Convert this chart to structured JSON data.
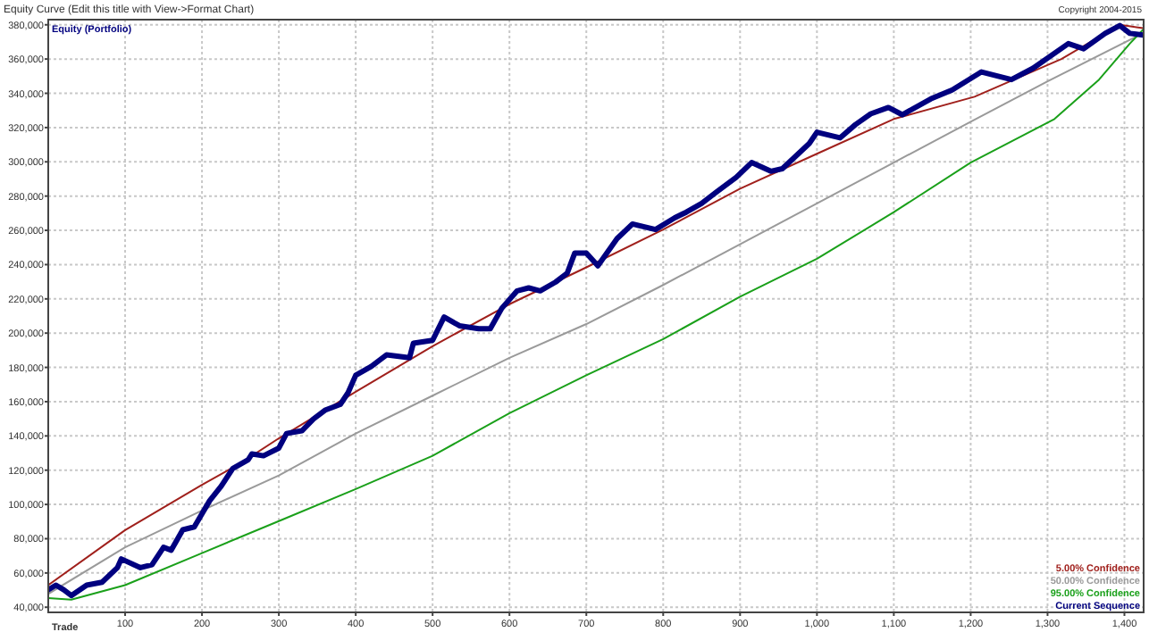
{
  "chart_data": {
    "type": "line",
    "title": "Equity Curve (Edit this title with View->Format Chart)",
    "xlabel": "Trade",
    "ylabel": "Equity (Portfolio)",
    "annotations": [
      "Copyright 2004-2015"
    ],
    "xlim": [
      0,
      1425
    ],
    "ylim": [
      37000,
      383000
    ],
    "xticks": [
      {
        "value": 100,
        "label": "100"
      },
      {
        "value": 200,
        "label": "200"
      },
      {
        "value": 300,
        "label": "300"
      },
      {
        "value": 400,
        "label": "400"
      },
      {
        "value": 500,
        "label": "500"
      },
      {
        "value": 600,
        "label": "600"
      },
      {
        "value": 700,
        "label": "700"
      },
      {
        "value": 800,
        "label": "800"
      },
      {
        "value": 900,
        "label": "900"
      },
      {
        "value": 1000,
        "label": "1,000"
      },
      {
        "value": 1100,
        "label": "1,100"
      },
      {
        "value": 1200,
        "label": "1,200"
      },
      {
        "value": 1300,
        "label": "1,300"
      },
      {
        "value": 1400,
        "label": "1,400"
      }
    ],
    "yticks": [
      {
        "value": 40000,
        "label": "40,000"
      },
      {
        "value": 60000,
        "label": "60,000"
      },
      {
        "value": 80000,
        "label": "80,000"
      },
      {
        "value": 100000,
        "label": "100,000"
      },
      {
        "value": 120000,
        "label": "120,000"
      },
      {
        "value": 140000,
        "label": "140,000"
      },
      {
        "value": 160000,
        "label": "160,000"
      },
      {
        "value": 180000,
        "label": "180,000"
      },
      {
        "value": 200000,
        "label": "200,000"
      },
      {
        "value": 220000,
        "label": "220,000"
      },
      {
        "value": 240000,
        "label": "240,000"
      },
      {
        "value": 260000,
        "label": "260,000"
      },
      {
        "value": 280000,
        "label": "280,000"
      },
      {
        "value": 300000,
        "label": "300,000"
      },
      {
        "value": 320000,
        "label": "320,000"
      },
      {
        "value": 340000,
        "label": "340,000"
      },
      {
        "value": 360000,
        "label": "360,000"
      },
      {
        "value": 380000,
        "label": "380,000"
      }
    ],
    "grid": true,
    "legend": "bottom right",
    "series": [
      {
        "name": "5.00% Confidence",
        "color": "#a0201c",
        "x": [
          0,
          100,
          200,
          250,
          300,
          400,
          500,
          600,
          700,
          800,
          900,
          1000,
          1100,
          1205,
          1318,
          1394,
          1424
        ],
        "values": [
          52900,
          85000,
          111400,
          124000,
          138600,
          165800,
          192400,
          216900,
          238400,
          260500,
          284300,
          304700,
          325000,
          338000,
          360000,
          380000,
          378000
        ]
      },
      {
        "name": "50.00% Confidence",
        "color": "#9a9a9a",
        "x": [
          0,
          100,
          200,
          300,
          400,
          500,
          600,
          700,
          800,
          900,
          1000,
          1100,
          1200,
          1300,
          1424
        ],
        "values": [
          47800,
          75000,
          96500,
          116900,
          141400,
          163500,
          185600,
          205300,
          228100,
          251900,
          275700,
          299600,
          323400,
          347000,
          375000
        ]
      },
      {
        "name": "95.00% Confidence",
        "color": "#1aa01a",
        "x": [
          0,
          30,
          100,
          200,
          300,
          400,
          500,
          600,
          700,
          800,
          900,
          1000,
          1100,
          1200,
          1309,
          1367,
          1407,
          1424
        ],
        "values": [
          45400,
          44400,
          52900,
          71600,
          90300,
          109000,
          128400,
          153300,
          175400,
          196500,
          221300,
          243400,
          270600,
          299600,
          325000,
          348000,
          369000,
          377000
        ]
      },
      {
        "name": "Current Sequence",
        "color": "#00007f",
        "x": [
          0,
          10,
          20,
          30,
          50,
          70,
          90,
          95,
          120,
          135,
          150,
          160,
          175,
          190,
          210,
          225,
          240,
          260,
          265,
          280,
          300,
          310,
          330,
          345,
          360,
          380,
          390,
          400,
          420,
          440,
          470,
          475,
          500,
          515,
          535,
          560,
          575,
          590,
          610,
          625,
          640,
          660,
          675,
          685,
          700,
          715,
          740,
          760,
          790,
          815,
          830,
          850,
          870,
          895,
          915,
          940,
          955,
          990,
          1000,
          1030,
          1050,
          1070,
          1093,
          1111,
          1148,
          1176,
          1214,
          1253,
          1281,
          1327,
          1347,
          1375,
          1394,
          1407,
          1424
        ],
        "values": [
          50200,
          52900,
          50200,
          46800,
          52900,
          54600,
          63100,
          68200,
          63100,
          64800,
          75000,
          73300,
          85200,
          86900,
          102200,
          110700,
          121000,
          126000,
          129500,
          128400,
          132900,
          141400,
          143000,
          149900,
          155000,
          158400,
          165200,
          175400,
          180500,
          187300,
          185600,
          194100,
          195800,
          209400,
          204300,
          202600,
          202600,
          214500,
          224700,
          226400,
          224700,
          229800,
          234900,
          246800,
          246800,
          239300,
          255200,
          263700,
          260500,
          267300,
          270600,
          275700,
          282600,
          291000,
          299600,
          294500,
          296000,
          310700,
          317300,
          314000,
          321700,
          328000,
          331700,
          327500,
          336700,
          342000,
          352500,
          348000,
          354600,
          369000,
          366000,
          375000,
          379600,
          375000,
          374000
        ]
      }
    ]
  }
}
